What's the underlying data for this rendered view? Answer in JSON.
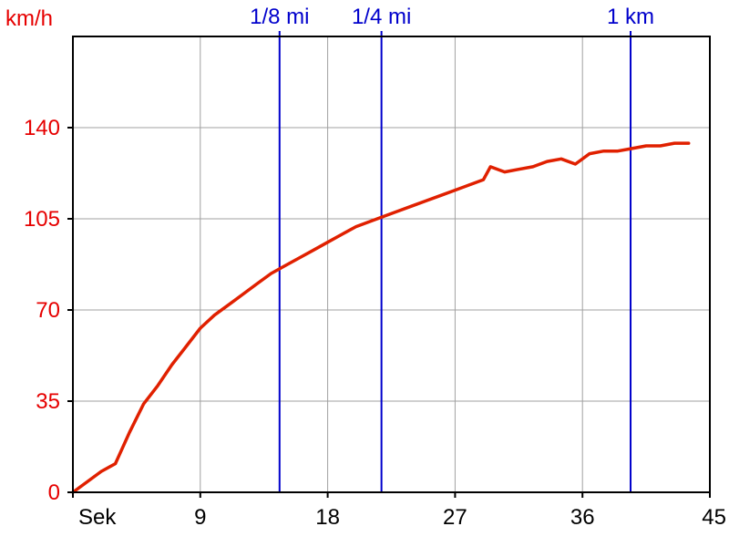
{
  "chart_data": {
    "type": "line",
    "ylabel": "km/h",
    "xlabel": "Sek",
    "xlim": [
      0,
      45
    ],
    "ylim": [
      0,
      175
    ],
    "x_ticks": [
      9,
      18,
      27,
      36,
      45
    ],
    "y_ticks": [
      0,
      35,
      70,
      105,
      140
    ],
    "grid": true,
    "colors": {
      "line": "#e02000",
      "marker": "#0000cc",
      "grid": "#a0a0a0",
      "y_text": "#e60000",
      "x_text": "#000000"
    },
    "markers": [
      {
        "label": "1/8 mi",
        "x": 14.6
      },
      {
        "label": "1/4 mi",
        "x": 21.8
      },
      {
        "label": "1 km",
        "x": 39.4
      }
    ],
    "series": [
      {
        "x": [
          0,
          1,
          2,
          3,
          4,
          5,
          6,
          7,
          8,
          9,
          10,
          11,
          12,
          13,
          14,
          15,
          16,
          17,
          18,
          19,
          20,
          21,
          22,
          23,
          24,
          25,
          26,
          27,
          28,
          29,
          29.5,
          30.5,
          31.5,
          32.5,
          33.5,
          34.5,
          35.5,
          36.5,
          37.5,
          38.5,
          39.5,
          40.5,
          41.5,
          42.5,
          43.5
        ],
        "y": [
          0,
          4,
          8,
          11,
          23,
          34,
          41,
          49,
          56,
          63,
          68,
          72,
          76,
          80,
          84,
          87,
          90,
          93,
          96,
          99,
          102,
          104,
          106,
          108,
          110,
          112,
          114,
          116,
          118,
          120,
          125,
          123,
          124,
          125,
          127,
          128,
          126,
          130,
          131,
          131,
          132,
          133,
          133,
          134,
          134
        ]
      }
    ]
  }
}
